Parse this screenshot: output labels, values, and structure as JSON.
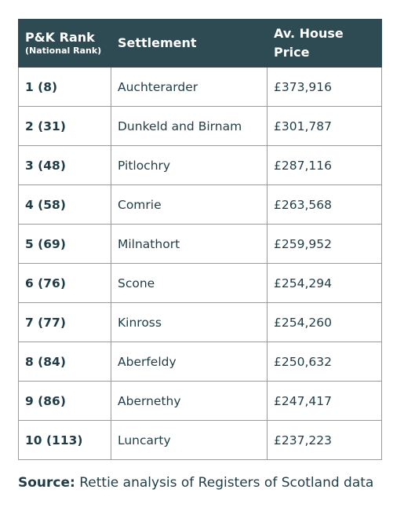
{
  "table": {
    "header": {
      "rank": "P&K Rank",
      "rank_note": "(National Rank)",
      "settlement": "Settlement",
      "price": "Av. House Price"
    },
    "rows": [
      [
        "1 (8)",
        "Auchterarder",
        "£373,916"
      ],
      [
        "2 (31)",
        "Dunkeld and Birnam",
        "£301,787"
      ],
      [
        "3 (48)",
        "Pitlochry",
        "£287,116"
      ],
      [
        "4 (58)",
        "Comrie",
        "£263,568"
      ],
      [
        "5 (69)",
        "Milnathort",
        "£259,952"
      ],
      [
        "6 (76)",
        "Scone",
        "£254,294"
      ],
      [
        "7 (77)",
        "Kinross",
        "£254,260"
      ],
      [
        "8 (84)",
        "Aberfeldy",
        "£250,632"
      ],
      [
        "9 (86)",
        "Abernethy",
        "£247,417"
      ],
      [
        "10 (113)",
        "Luncarty",
        "£237,223"
      ]
    ]
  },
  "source": {
    "label": "Source:",
    "text": "Rettie analysis of Registers of Scotland data"
  }
}
